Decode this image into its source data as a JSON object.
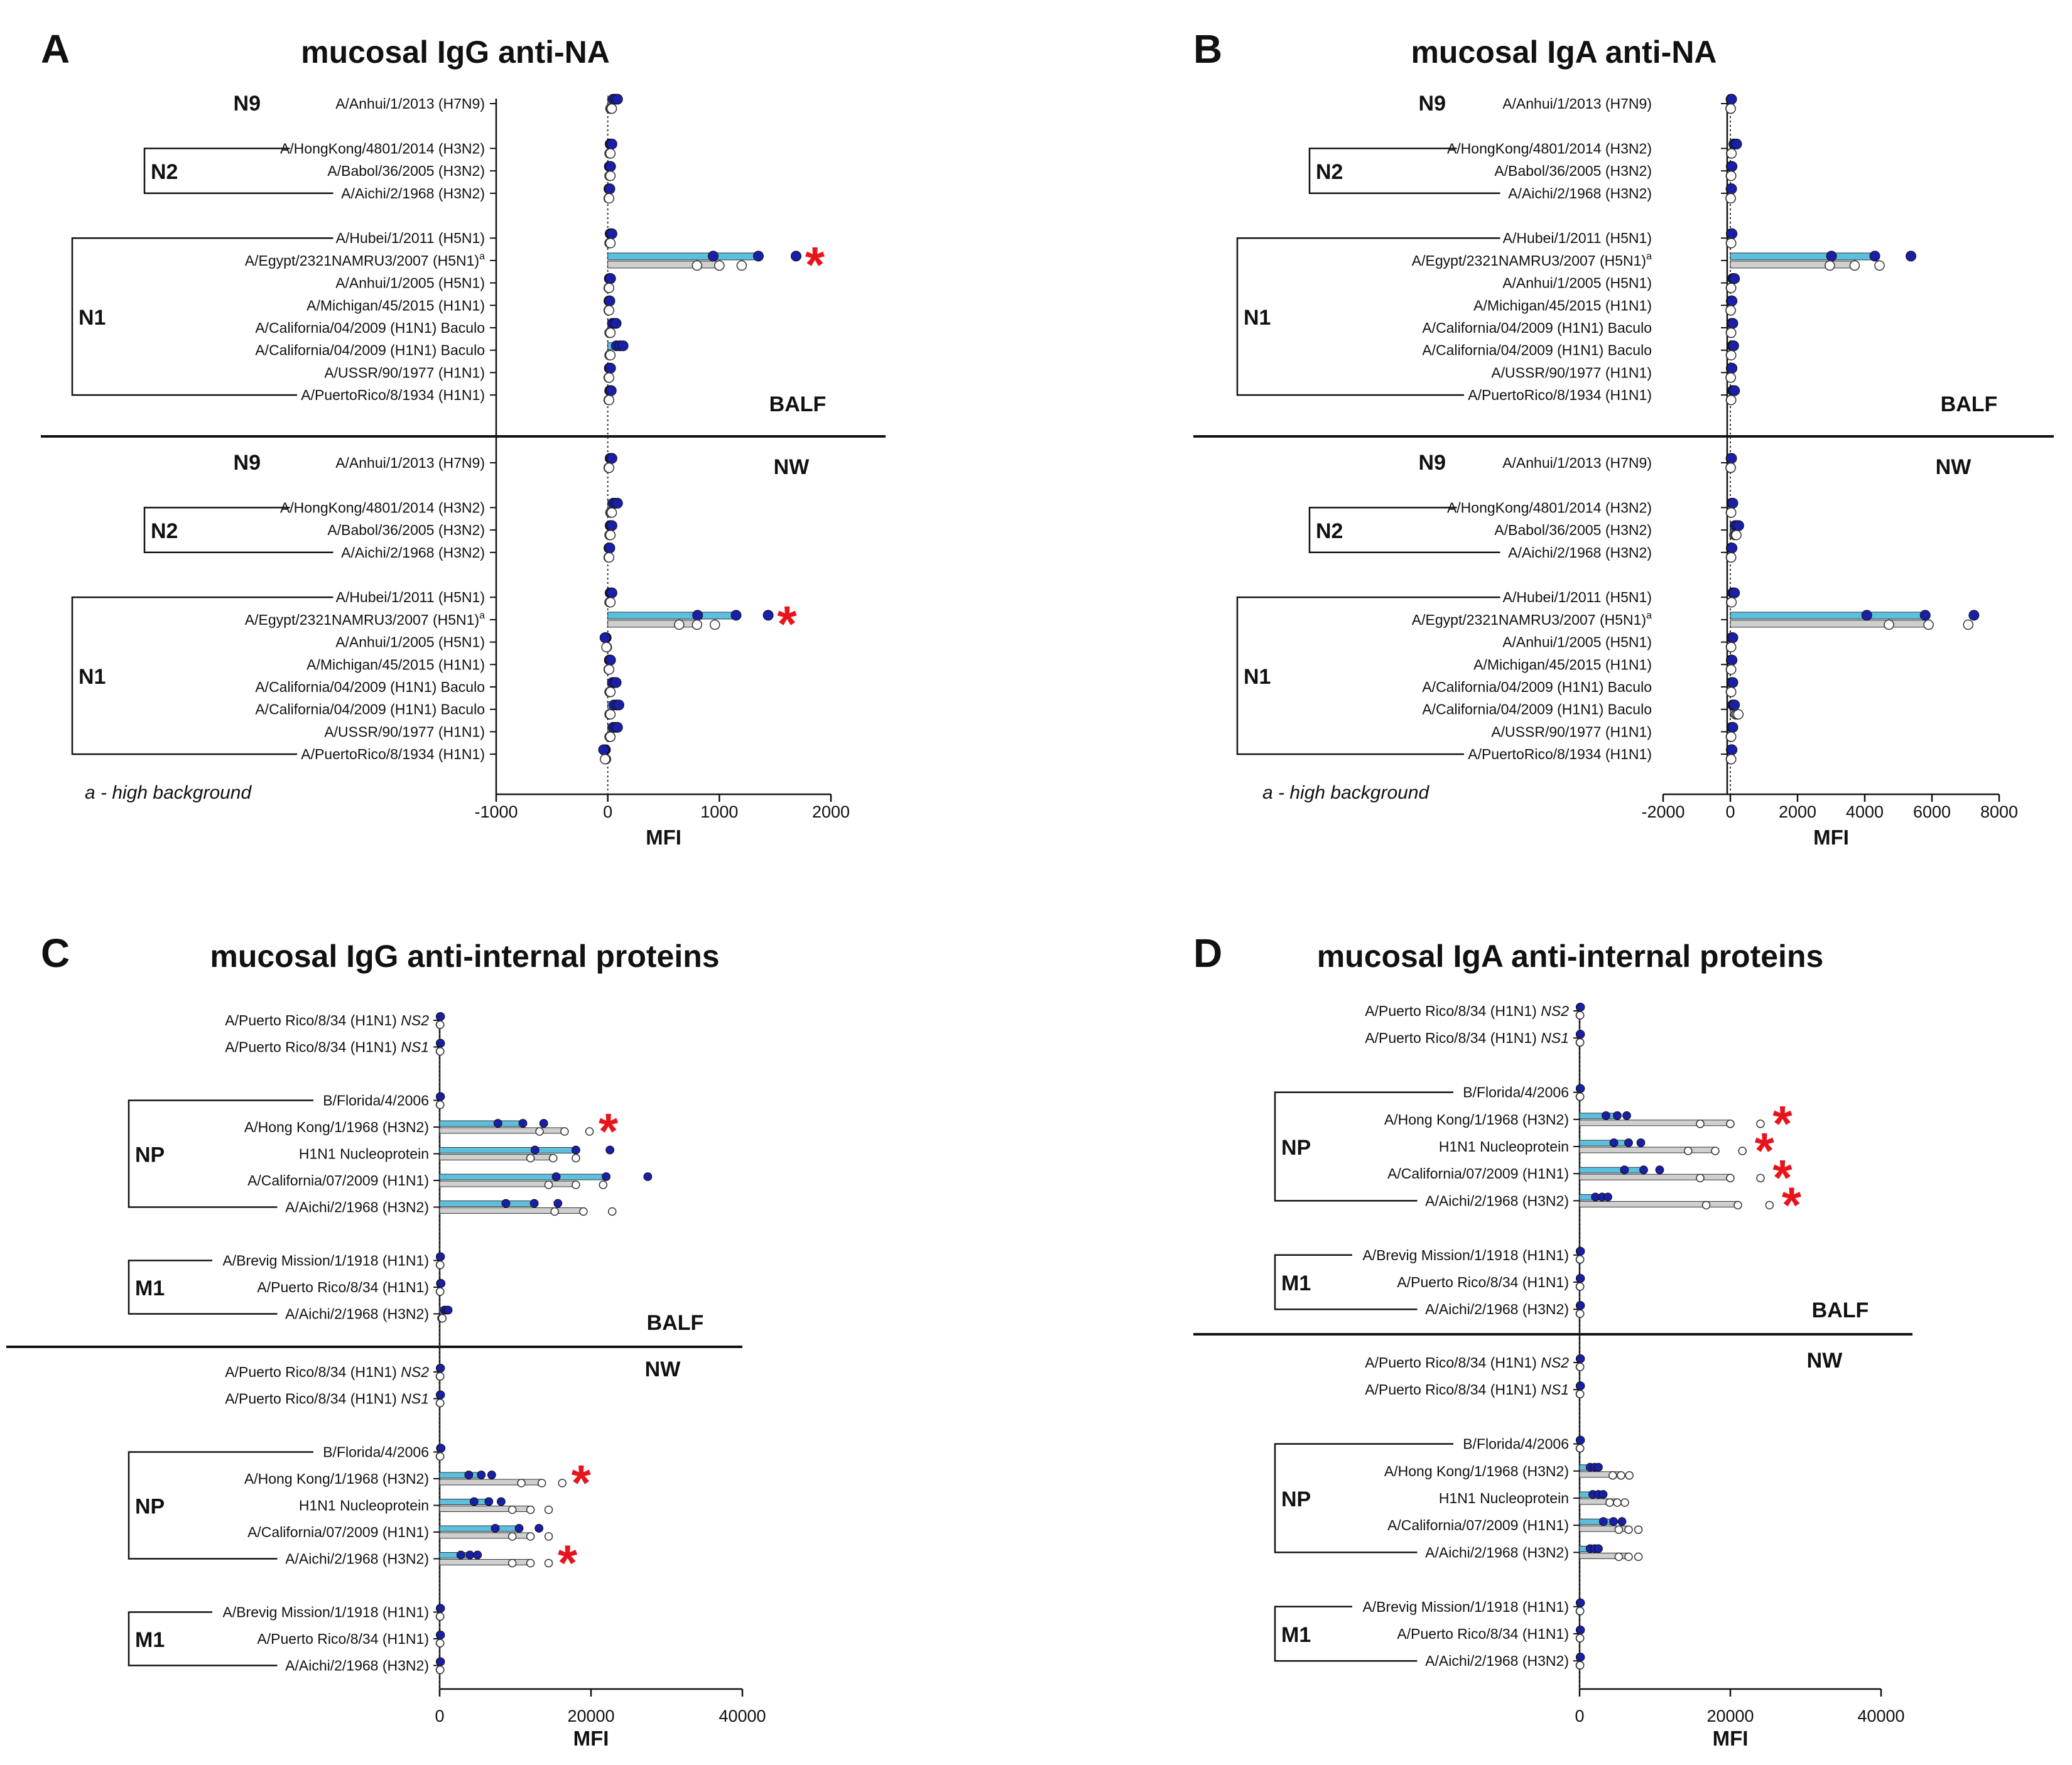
{
  "figure": {
    "footnote": "a - high background",
    "significance_marker": "*"
  },
  "colors": {
    "accent_bar": "#5bc0de",
    "blue_dot": "#1a1fa8",
    "grey_bar": "#cfcfcf",
    "star": "#e8141c"
  },
  "chart_data": [
    {
      "id": "A",
      "type": "bar",
      "letter": "A",
      "title": "mucosal IgG anti-NA",
      "xlabel": "MFI",
      "xlim": [
        -1000,
        2000
      ],
      "xticks": [
        -1000,
        0,
        1000,
        2000
      ],
      "samples": [
        {
          "name": "BALF",
          "position": "bottom",
          "groups": [
            {
              "label": "N9",
              "style": "inline",
              "categories": [
                {
                  "label": "A/Anhui/1/2013 (H7N9)",
                  "blue": 70,
                  "grey": 30
                }
              ]
            },
            {
              "label": "N2",
              "style": "bracket",
              "categories": [
                {
                  "label": "A/HongKong/4801/2014 (H3N2)",
                  "blue": 30,
                  "grey": 20
                },
                {
                  "label": "A/Babol/36/2005 (H3N2)",
                  "blue": 20,
                  "grey": 20
                },
                {
                  "label": "A/Aichi/2/1968 (H3N2)",
                  "blue": 15,
                  "grey": 10
                }
              ]
            },
            {
              "label": "N1",
              "style": "bracket",
              "categories": [
                {
                  "label": "A/Hubei/1/2011 (H5N1)",
                  "blue": 30,
                  "grey": 20
                },
                {
                  "label": "A/Egypt/2321NAMRU3/2007 (H5N1)",
                  "sup": "a",
                  "blue": 1350,
                  "grey": 1000,
                  "star": true
                },
                {
                  "label": "A/Anhui/1/2005 (H5N1)",
                  "blue": 20,
                  "grey": 10
                },
                {
                  "label": "A/Michigan/45/2015 (H1N1)",
                  "blue": 15,
                  "grey": 10
                },
                {
                  "label": "A/California/04/2009 (H1N1) Baculo",
                  "blue": 60,
                  "grey": 20
                },
                {
                  "label": "A/California/04/2009 (H1N1) Baculo",
                  "blue": 110,
                  "grey": 20
                },
                {
                  "label": "A/USSR/90/1977 (H1N1)",
                  "blue": 20,
                  "grey": 10
                },
                {
                  "label": "A/PuertoRico/8/1934 (H1N1)",
                  "blue": 25,
                  "grey": 10
                }
              ]
            }
          ]
        },
        {
          "name": "NW",
          "position": "top",
          "groups": [
            {
              "label": "N9",
              "style": "inline",
              "categories": [
                {
                  "label": "A/Anhui/1/2013 (H7N9)",
                  "blue": 30,
                  "grey": 10
                }
              ]
            },
            {
              "label": "N2",
              "style": "bracket",
              "categories": [
                {
                  "label": "A/HongKong/4801/2014 (H3N2)",
                  "blue": 70,
                  "grey": 30
                },
                {
                  "label": "A/Babol/36/2005 (H3N2)",
                  "blue": 30,
                  "grey": 20
                },
                {
                  "label": "A/Aichi/2/1968 (H3N2)",
                  "blue": 15,
                  "grey": 10
                }
              ]
            },
            {
              "label": "N1",
              "style": "bracket",
              "categories": [
                {
                  "label": "A/Hubei/1/2011 (H5N1)",
                  "blue": 30,
                  "grey": 20
                },
                {
                  "label": "A/Egypt/2321NAMRU3/2007 (H5N1)",
                  "sup": "a",
                  "blue": 1150,
                  "grey": 800,
                  "star": true
                },
                {
                  "label": "A/Anhui/1/2005 (H5N1)",
                  "blue": -20,
                  "grey": -10
                },
                {
                  "label": "A/Michigan/45/2015 (H1N1)",
                  "blue": 20,
                  "grey": 10
                },
                {
                  "label": "A/California/04/2009 (H1N1) Baculo",
                  "blue": 60,
                  "grey": 20
                },
                {
                  "label": "A/California/04/2009 (H1N1) Baculo",
                  "blue": 80,
                  "grey": 20
                },
                {
                  "label": "A/USSR/90/1977 (H1N1)",
                  "blue": 70,
                  "grey": 20
                },
                {
                  "label": "A/PuertoRico/8/1934 (H1N1)",
                  "blue": -30,
                  "grey": -20
                }
              ]
            }
          ]
        }
      ]
    },
    {
      "id": "B",
      "type": "bar",
      "letter": "B",
      "title": "mucosal IgA anti-NA",
      "xlabel": "MFI",
      "xlim": [
        -2000,
        8000
      ],
      "xticks": [
        -2000,
        0,
        2000,
        4000,
        6000,
        8000
      ],
      "samples": [
        {
          "name": "BALF",
          "position": "bottom",
          "groups": [
            {
              "label": "N9",
              "style": "inline",
              "categories": [
                {
                  "label": "A/Anhui/1/2013 (H7N9)",
                  "blue": 30,
                  "grey": 10
                }
              ]
            },
            {
              "label": "N2",
              "style": "bracket",
              "categories": [
                {
                  "label": "A/HongKong/4801/2014 (H3N2)",
                  "blue": 150,
                  "grey": 30
                },
                {
                  "label": "A/Babol/36/2005 (H3N2)",
                  "blue": 40,
                  "grey": 20
                },
                {
                  "label": "A/Aichi/2/1968 (H3N2)",
                  "blue": 30,
                  "grey": 10
                }
              ]
            },
            {
              "label": "N1",
              "style": "bracket",
              "categories": [
                {
                  "label": "A/Hubei/1/2011 (H5N1)",
                  "blue": 40,
                  "grey": 20
                },
                {
                  "label": "A/Egypt/2321NAMRU3/2007 (H5N1)",
                  "sup": "a",
                  "blue": 4300,
                  "grey": 3700
                },
                {
                  "label": "A/Anhui/1/2005 (H5N1)",
                  "blue": 100,
                  "grey": 20
                },
                {
                  "label": "A/Michigan/45/2015 (H1N1)",
                  "blue": 40,
                  "grey": 10
                },
                {
                  "label": "A/California/04/2009 (H1N1) Baculo",
                  "blue": 60,
                  "grey": 20
                },
                {
                  "label": "A/California/04/2009 (H1N1) Baculo",
                  "blue": 80,
                  "grey": 20
                },
                {
                  "label": "A/USSR/90/1977 (H1N1)",
                  "blue": 40,
                  "grey": 10
                },
                {
                  "label": "A/PuertoRico/8/1934 (H1N1)",
                  "blue": 100,
                  "grey": 20
                }
              ]
            }
          ]
        },
        {
          "name": "NW",
          "position": "top",
          "groups": [
            {
              "label": "N9",
              "style": "inline",
              "categories": [
                {
                  "label": "A/Anhui/1/2013 (H7N9)",
                  "blue": 30,
                  "grey": 10
                }
              ]
            },
            {
              "label": "N2",
              "style": "bracket",
              "categories": [
                {
                  "label": "A/HongKong/4801/2014 (H3N2)",
                  "blue": 60,
                  "grey": 20
                },
                {
                  "label": "A/Babol/36/2005 (H3N2)",
                  "blue": 200,
                  "grey": 150
                },
                {
                  "label": "A/Aichi/2/1968 (H3N2)",
                  "blue": 40,
                  "grey": 20
                }
              ]
            },
            {
              "label": "N1",
              "style": "bracket",
              "categories": [
                {
                  "label": "A/Hubei/1/2011 (H5N1)",
                  "blue": 100,
                  "grey": 30
                },
                {
                  "label": "A/Egypt/2321NAMRU3/2007 (H5N1)",
                  "sup": "a",
                  "blue": 5800,
                  "grey": 5900
                },
                {
                  "label": "A/Anhui/1/2005 (H5N1)",
                  "blue": 60,
                  "grey": 20
                },
                {
                  "label": "A/Michigan/45/2015 (H1N1)",
                  "blue": 40,
                  "grey": 20
                },
                {
                  "label": "A/California/04/2009 (H1N1) Baculo",
                  "blue": 60,
                  "grey": 20
                },
                {
                  "label": "A/California/04/2009 (H1N1) Baculo",
                  "blue": 100,
                  "grey": 200
                },
                {
                  "label": "A/USSR/90/1977 (H1N1)",
                  "blue": 60,
                  "grey": 20
                },
                {
                  "label": "A/PuertoRico/8/1934 (H1N1)",
                  "blue": 40,
                  "grey": 20
                }
              ]
            }
          ]
        }
      ]
    },
    {
      "id": "C",
      "type": "bar",
      "letter": "C",
      "title": "mucosal IgG anti-internal proteins",
      "xlabel": "MFI",
      "xlim": [
        0,
        40000
      ],
      "xticks": [
        0,
        20000,
        40000
      ],
      "samples": [
        {
          "name": "BALF",
          "position": "bottom",
          "groups": [
            {
              "label": "",
              "style": "none",
              "categories": [
                {
                  "label": "A/Puerto Rico/8/34 (H1N1)",
                  "italic": "NS2",
                  "blue": 100,
                  "grey": 50
                },
                {
                  "label": "A/Puerto Rico/8/34 (H1N1)",
                  "italic": "NS1",
                  "blue": 100,
                  "grey": 50
                }
              ]
            },
            {
              "label": "NP",
              "style": "bracket",
              "categories": [
                {
                  "label": "B/Florida/4/2006",
                  "blue": 100,
                  "grey": 50
                },
                {
                  "label": "A/Hong Kong/1/1968 (H3N2)",
                  "blue": 11000,
                  "grey": 16500,
                  "star": true
                },
                {
                  "label": "H1N1 Nucleoprotein",
                  "blue": 18000,
                  "grey": 15000
                },
                {
                  "label": "A/California/07/2009 (H1N1)",
                  "blue": 22000,
                  "grey": 18000
                },
                {
                  "label": "A/Aichi/2/1968 (H3N2)",
                  "blue": 12500,
                  "grey": 19000
                }
              ]
            },
            {
              "label": "M1",
              "style": "bracket",
              "categories": [
                {
                  "label": "A/Brevig Mission/1/1918 (H1N1)",
                  "blue": 100,
                  "grey": 50
                },
                {
                  "label": "A/Puerto Rico/8/34 (H1N1)",
                  "blue": 150,
                  "grey": 50
                },
                {
                  "label": "A/Aichi/2/1968 (H3N2)",
                  "blue": 900,
                  "grey": 300
                }
              ]
            }
          ]
        },
        {
          "name": "NW",
          "position": "top",
          "groups": [
            {
              "label": "",
              "style": "none",
              "categories": [
                {
                  "label": "A/Puerto Rico/8/34 (H1N1)",
                  "italic": "NS2",
                  "blue": 100,
                  "grey": 50
                },
                {
                  "label": "A/Puerto Rico/8/34 (H1N1)",
                  "italic": "NS1",
                  "blue": 100,
                  "grey": 50
                }
              ]
            },
            {
              "label": "NP",
              "style": "bracket",
              "categories": [
                {
                  "label": "B/Florida/4/2006",
                  "blue": 150,
                  "grey": 50
                },
                {
                  "label": "A/Hong Kong/1/1968 (H3N2)",
                  "blue": 5500,
                  "grey": 13500,
                  "star": true
                },
                {
                  "label": "H1N1 Nucleoprotein",
                  "blue": 6500,
                  "grey": 12000
                },
                {
                  "label": "A/California/07/2009 (H1N1)",
                  "blue": 10500,
                  "grey": 12000
                },
                {
                  "label": "A/Aichi/2/1968 (H3N2)",
                  "blue": 4000,
                  "grey": 12000,
                  "star": true
                }
              ]
            },
            {
              "label": "M1",
              "style": "bracket",
              "categories": [
                {
                  "label": "A/Brevig Mission/1/1918 (H1N1)",
                  "blue": 100,
                  "grey": 50
                },
                {
                  "label": "A/Puerto Rico/8/34 (H1N1)",
                  "blue": 100,
                  "grey": 50
                },
                {
                  "label": "A/Aichi/2/1968 (H3N2)",
                  "blue": 100,
                  "grey": 50
                }
              ]
            }
          ]
        }
      ]
    },
    {
      "id": "D",
      "type": "bar",
      "letter": "D",
      "title": "mucosal IgA anti-internal proteins",
      "xlabel": "MFI",
      "xlim": [
        0,
        40000
      ],
      "xticks": [
        0,
        20000,
        40000
      ],
      "samples": [
        {
          "name": "BALF",
          "position": "bottom",
          "groups": [
            {
              "label": "",
              "style": "none",
              "categories": [
                {
                  "label": "A/Puerto Rico/8/34 (H1N1)",
                  "italic": "NS2",
                  "blue": 100,
                  "grey": 50
                },
                {
                  "label": "A/Puerto Rico/8/34 (H1N1)",
                  "italic": "NS1",
                  "blue": 100,
                  "grey": 50
                }
              ]
            },
            {
              "label": "NP",
              "style": "bracket",
              "categories": [
                {
                  "label": "B/Florida/4/2006",
                  "blue": 100,
                  "grey": 50
                },
                {
                  "label": "A/Hong Kong/1/1968 (H3N2)",
                  "blue": 5000,
                  "grey": 20000,
                  "star": true
                },
                {
                  "label": "H1N1 Nucleoprotein",
                  "blue": 6500,
                  "grey": 18000,
                  "star": true
                },
                {
                  "label": "A/California/07/2009 (H1N1)",
                  "blue": 8500,
                  "grey": 20000,
                  "star": true
                },
                {
                  "label": "A/Aichi/2/1968 (H3N2)",
                  "blue": 3000,
                  "grey": 21000,
                  "star": true
                }
              ]
            },
            {
              "label": "M1",
              "style": "bracket",
              "categories": [
                {
                  "label": "A/Brevig Mission/1/1918 (H1N1)",
                  "blue": 100,
                  "grey": 50
                },
                {
                  "label": "A/Puerto Rico/8/34 (H1N1)",
                  "blue": 100,
                  "grey": 50
                },
                {
                  "label": "A/Aichi/2/1968 (H3N2)",
                  "blue": 100,
                  "grey": 50
                }
              ]
            }
          ]
        },
        {
          "name": "NW",
          "position": "top",
          "groups": [
            {
              "label": "",
              "style": "none",
              "categories": [
                {
                  "label": "A/Puerto Rico/8/34 (H1N1)",
                  "italic": "NS2",
                  "blue": 100,
                  "grey": 50
                },
                {
                  "label": "A/Puerto Rico/8/34 (H1N1)",
                  "italic": "NS1",
                  "blue": 100,
                  "grey": 50
                }
              ]
            },
            {
              "label": "NP",
              "style": "bracket",
              "categories": [
                {
                  "label": "B/Florida/4/2006",
                  "blue": 100,
                  "grey": 50
                },
                {
                  "label": "A/Hong Kong/1/1968 (H3N2)",
                  "blue": 2000,
                  "grey": 5500
                },
                {
                  "label": "H1N1 Nucleoprotein",
                  "blue": 2500,
                  "grey": 5000
                },
                {
                  "label": "A/California/07/2009 (H1N1)",
                  "blue": 4500,
                  "grey": 6500
                },
                {
                  "label": "A/Aichi/2/1968 (H3N2)",
                  "blue": 2000,
                  "grey": 6500
                }
              ]
            },
            {
              "label": "M1",
              "style": "bracket",
              "categories": [
                {
                  "label": "A/Brevig Mission/1/1918 (H1N1)",
                  "blue": 100,
                  "grey": 50
                },
                {
                  "label": "A/Puerto Rico/8/34 (H1N1)",
                  "blue": 100,
                  "grey": 50
                },
                {
                  "label": "A/Aichi/2/1968 (H3N2)",
                  "blue": 100,
                  "grey": 50
                }
              ]
            }
          ]
        }
      ]
    }
  ]
}
